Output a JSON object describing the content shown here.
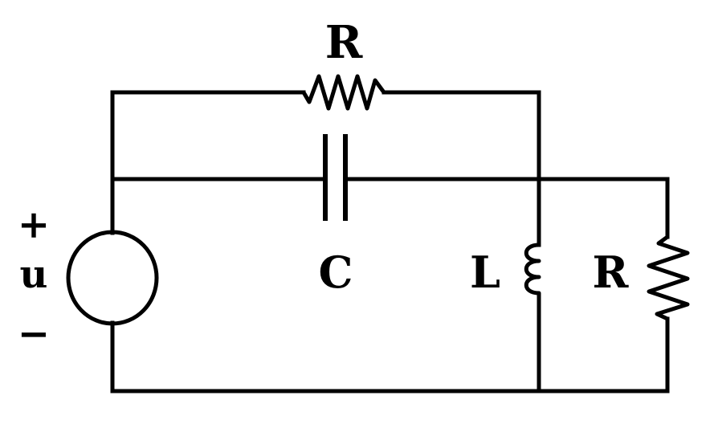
{
  "diagram": {
    "title": "",
    "labels": {
      "top_resistor": "R",
      "capacitor": "C",
      "inductor": "L",
      "right_resistor": "R",
      "source_plus": "+",
      "source_name": "u",
      "source_minus": "−"
    }
  }
}
